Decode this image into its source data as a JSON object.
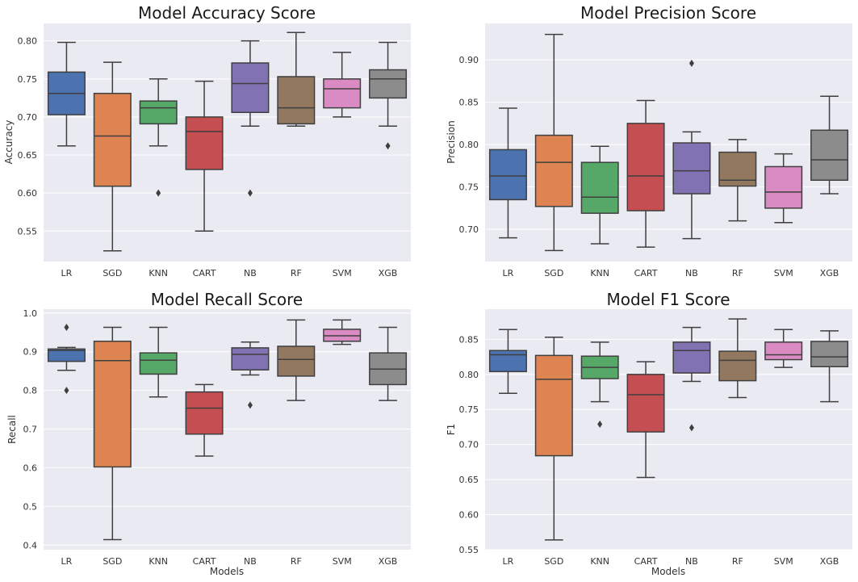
{
  "colors": {
    "LR": "#4c72b0",
    "SGD": "#dd8452",
    "KNN": "#55a868",
    "CART": "#c44e52",
    "NB": "#8172b3",
    "RF": "#937860",
    "SVM": "#da8bc3",
    "XGB": "#8c8c8c",
    "background": "#eaeaf2",
    "line": "#3f3f3f"
  },
  "chart_data": [
    {
      "type": "box",
      "title": "Model Accuracy Score",
      "xlabel": "",
      "ylabel": "Accuracy",
      "ylim": [
        0.51,
        0.823
      ],
      "yticks": [
        0.55,
        0.6,
        0.65,
        0.7,
        0.75,
        0.8
      ],
      "ytick_labels": [
        "0.55",
        "0.60",
        "0.65",
        "0.70",
        "0.75",
        "0.80"
      ],
      "categories": [
        "LR",
        "SGD",
        "KNN",
        "CART",
        "NB",
        "RF",
        "SVM",
        "XGB"
      ],
      "boxes": [
        {
          "whislo": 0.662,
          "q1": 0.703,
          "med": 0.731,
          "q3": 0.759,
          "whishi": 0.798,
          "fliers": []
        },
        {
          "whislo": 0.524,
          "q1": 0.609,
          "med": 0.675,
          "q3": 0.731,
          "whishi": 0.772,
          "fliers": []
        },
        {
          "whislo": 0.662,
          "q1": 0.691,
          "med": 0.712,
          "q3": 0.721,
          "whishi": 0.75,
          "fliers": [
            0.6
          ]
        },
        {
          "whislo": 0.55,
          "q1": 0.631,
          "med": 0.681,
          "q3": 0.7,
          "whishi": 0.747,
          "fliers": []
        },
        {
          "whislo": 0.688,
          "q1": 0.706,
          "med": 0.744,
          "q3": 0.771,
          "whishi": 0.8,
          "fliers": [
            0.6
          ]
        },
        {
          "whislo": 0.688,
          "q1": 0.691,
          "med": 0.712,
          "q3": 0.753,
          "whishi": 0.811,
          "fliers": []
        },
        {
          "whislo": 0.7,
          "q1": 0.712,
          "med": 0.737,
          "q3": 0.75,
          "whishi": 0.785,
          "fliers": []
        },
        {
          "whislo": 0.688,
          "q1": 0.725,
          "med": 0.75,
          "q3": 0.762,
          "whishi": 0.798,
          "fliers": [
            0.662
          ]
        }
      ]
    },
    {
      "type": "box",
      "title": "Model Precision Score",
      "xlabel": "",
      "ylabel": "Precision",
      "ylim": [
        0.662,
        0.943
      ],
      "yticks": [
        0.7,
        0.75,
        0.8,
        0.85,
        0.9
      ],
      "ytick_labels": [
        "0.70",
        "0.75",
        "0.80",
        "0.85",
        "0.90"
      ],
      "categories": [
        "LR",
        "SGD",
        "KNN",
        "CART",
        "NB",
        "RF",
        "SVM",
        "XGB"
      ],
      "boxes": [
        {
          "whislo": 0.69,
          "q1": 0.735,
          "med": 0.763,
          "q3": 0.794,
          "whishi": 0.843,
          "fliers": []
        },
        {
          "whislo": 0.675,
          "q1": 0.727,
          "med": 0.779,
          "q3": 0.811,
          "whishi": 0.93,
          "fliers": []
        },
        {
          "whislo": 0.683,
          "q1": 0.719,
          "med": 0.738,
          "q3": 0.779,
          "whishi": 0.798,
          "fliers": []
        },
        {
          "whislo": 0.679,
          "q1": 0.722,
          "med": 0.763,
          "q3": 0.825,
          "whishi": 0.852,
          "fliers": []
        },
        {
          "whislo": 0.689,
          "q1": 0.742,
          "med": 0.769,
          "q3": 0.802,
          "whishi": 0.815,
          "fliers": [
            0.896
          ]
        },
        {
          "whislo": 0.71,
          "q1": 0.751,
          "med": 0.758,
          "q3": 0.791,
          "whishi": 0.806,
          "fliers": []
        },
        {
          "whislo": 0.708,
          "q1": 0.725,
          "med": 0.744,
          "q3": 0.774,
          "whishi": 0.789,
          "fliers": []
        },
        {
          "whislo": 0.742,
          "q1": 0.758,
          "med": 0.782,
          "q3": 0.817,
          "whishi": 0.857,
          "fliers": []
        }
      ]
    },
    {
      "type": "box",
      "title": "Model Recall Score",
      "xlabel": "Models",
      "ylabel": "Recall",
      "ylim": [
        0.388,
        1.01
      ],
      "yticks": [
        0.4,
        0.5,
        0.6,
        0.7,
        0.8,
        0.9,
        1.0
      ],
      "ytick_labels": [
        "0.4",
        "0.5",
        "0.6",
        "0.7",
        "0.8",
        "0.9",
        "1.0"
      ],
      "categories": [
        "LR",
        "SGD",
        "KNN",
        "CART",
        "NB",
        "RF",
        "SVM",
        "XGB"
      ],
      "boxes": [
        {
          "whislo": 0.852,
          "q1": 0.875,
          "med": 0.903,
          "q3": 0.907,
          "whishi": 0.911,
          "fliers": [
            0.8,
            0.963
          ]
        },
        {
          "whislo": 0.414,
          "q1": 0.602,
          "med": 0.877,
          "q3": 0.927,
          "whishi": 0.963,
          "fliers": []
        },
        {
          "whislo": 0.783,
          "q1": 0.842,
          "med": 0.878,
          "q3": 0.897,
          "whishi": 0.963,
          "fliers": []
        },
        {
          "whislo": 0.63,
          "q1": 0.687,
          "med": 0.754,
          "q3": 0.796,
          "whishi": 0.815,
          "fliers": []
        },
        {
          "whislo": 0.84,
          "q1": 0.853,
          "med": 0.893,
          "q3": 0.91,
          "whishi": 0.925,
          "fliers": [
            0.762
          ]
        },
        {
          "whislo": 0.774,
          "q1": 0.837,
          "med": 0.88,
          "q3": 0.914,
          "whishi": 0.982,
          "fliers": []
        },
        {
          "whislo": 0.919,
          "q1": 0.927,
          "med": 0.941,
          "q3": 0.958,
          "whishi": 0.982,
          "fliers": []
        },
        {
          "whislo": 0.774,
          "q1": 0.815,
          "med": 0.855,
          "q3": 0.897,
          "whishi": 0.963,
          "fliers": []
        }
      ]
    },
    {
      "type": "box",
      "title": "Model F1 Score",
      "xlabel": "Models",
      "ylabel": "F1",
      "ylim": [
        0.55,
        0.893
      ],
      "yticks": [
        0.55,
        0.6,
        0.65,
        0.7,
        0.75,
        0.8,
        0.85
      ],
      "ytick_labels": [
        "0.55",
        "0.60",
        "0.65",
        "0.70",
        "0.75",
        "0.80",
        "0.85"
      ],
      "categories": [
        "LR",
        "SGD",
        "KNN",
        "CART",
        "NB",
        "RF",
        "SVM",
        "XGB"
      ],
      "boxes": [
        {
          "whislo": 0.773,
          "q1": 0.804,
          "med": 0.828,
          "q3": 0.834,
          "whishi": 0.864,
          "fliers": []
        },
        {
          "whislo": 0.564,
          "q1": 0.684,
          "med": 0.793,
          "q3": 0.827,
          "whishi": 0.853,
          "fliers": []
        },
        {
          "whislo": 0.761,
          "q1": 0.794,
          "med": 0.81,
          "q3": 0.826,
          "whishi": 0.846,
          "fliers": [
            0.729
          ]
        },
        {
          "whislo": 0.653,
          "q1": 0.718,
          "med": 0.771,
          "q3": 0.8,
          "whishi": 0.818,
          "fliers": []
        },
        {
          "whislo": 0.79,
          "q1": 0.802,
          "med": 0.834,
          "q3": 0.846,
          "whishi": 0.867,
          "fliers": [
            0.724
          ]
        },
        {
          "whislo": 0.767,
          "q1": 0.791,
          "med": 0.82,
          "q3": 0.833,
          "whishi": 0.879,
          "fliers": []
        },
        {
          "whislo": 0.81,
          "q1": 0.821,
          "med": 0.828,
          "q3": 0.846,
          "whishi": 0.864,
          "fliers": []
        },
        {
          "whislo": 0.761,
          "q1": 0.811,
          "med": 0.825,
          "q3": 0.847,
          "whishi": 0.862,
          "fliers": []
        }
      ]
    }
  ]
}
